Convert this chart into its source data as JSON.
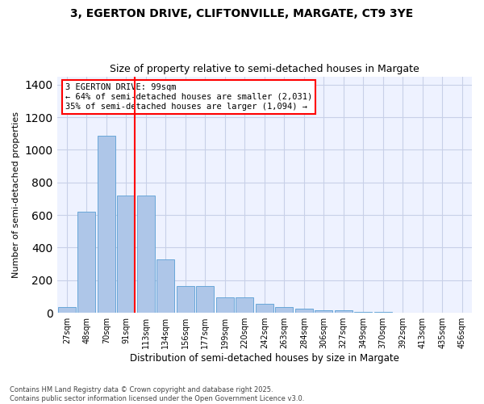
{
  "title1": "3, EGERTON DRIVE, CLIFTONVILLE, MARGATE, CT9 3YE",
  "title2": "Size of property relative to semi-detached houses in Margate",
  "xlabel": "Distribution of semi-detached houses by size in Margate",
  "ylabel": "Number of semi-detached properties",
  "categories": [
    "27sqm",
    "48sqm",
    "70sqm",
    "91sqm",
    "113sqm",
    "134sqm",
    "156sqm",
    "177sqm",
    "199sqm",
    "220sqm",
    "242sqm",
    "263sqm",
    "284sqm",
    "306sqm",
    "327sqm",
    "349sqm",
    "370sqm",
    "392sqm",
    "413sqm",
    "435sqm",
    "456sqm"
  ],
  "values": [
    35,
    620,
    1085,
    720,
    720,
    330,
    165,
    165,
    95,
    95,
    55,
    35,
    25,
    18,
    15,
    8,
    5,
    3,
    0,
    0,
    0
  ],
  "bar_color": "#aec6e8",
  "bar_edge_color": "#5a9fd4",
  "vline_color": "red",
  "annotation_text": "3 EGERTON DRIVE: 99sqm\n← 64% of semi-detached houses are smaller (2,031)\n35% of semi-detached houses are larger (1,094) →",
  "annotation_box_color": "white",
  "annotation_box_edge_color": "red",
  "ylim": [
    0,
    1450
  ],
  "yticks": [
    0,
    200,
    400,
    600,
    800,
    1000,
    1200,
    1400
  ],
  "bg_color": "#eef2ff",
  "grid_color": "#c8d0e8",
  "footnote": "Contains HM Land Registry data © Crown copyright and database right 2025.\nContains public sector information licensed under the Open Government Licence v3.0.",
  "title1_fontsize": 10,
  "title2_fontsize": 9,
  "xlabel_fontsize": 8.5,
  "ylabel_fontsize": 8
}
